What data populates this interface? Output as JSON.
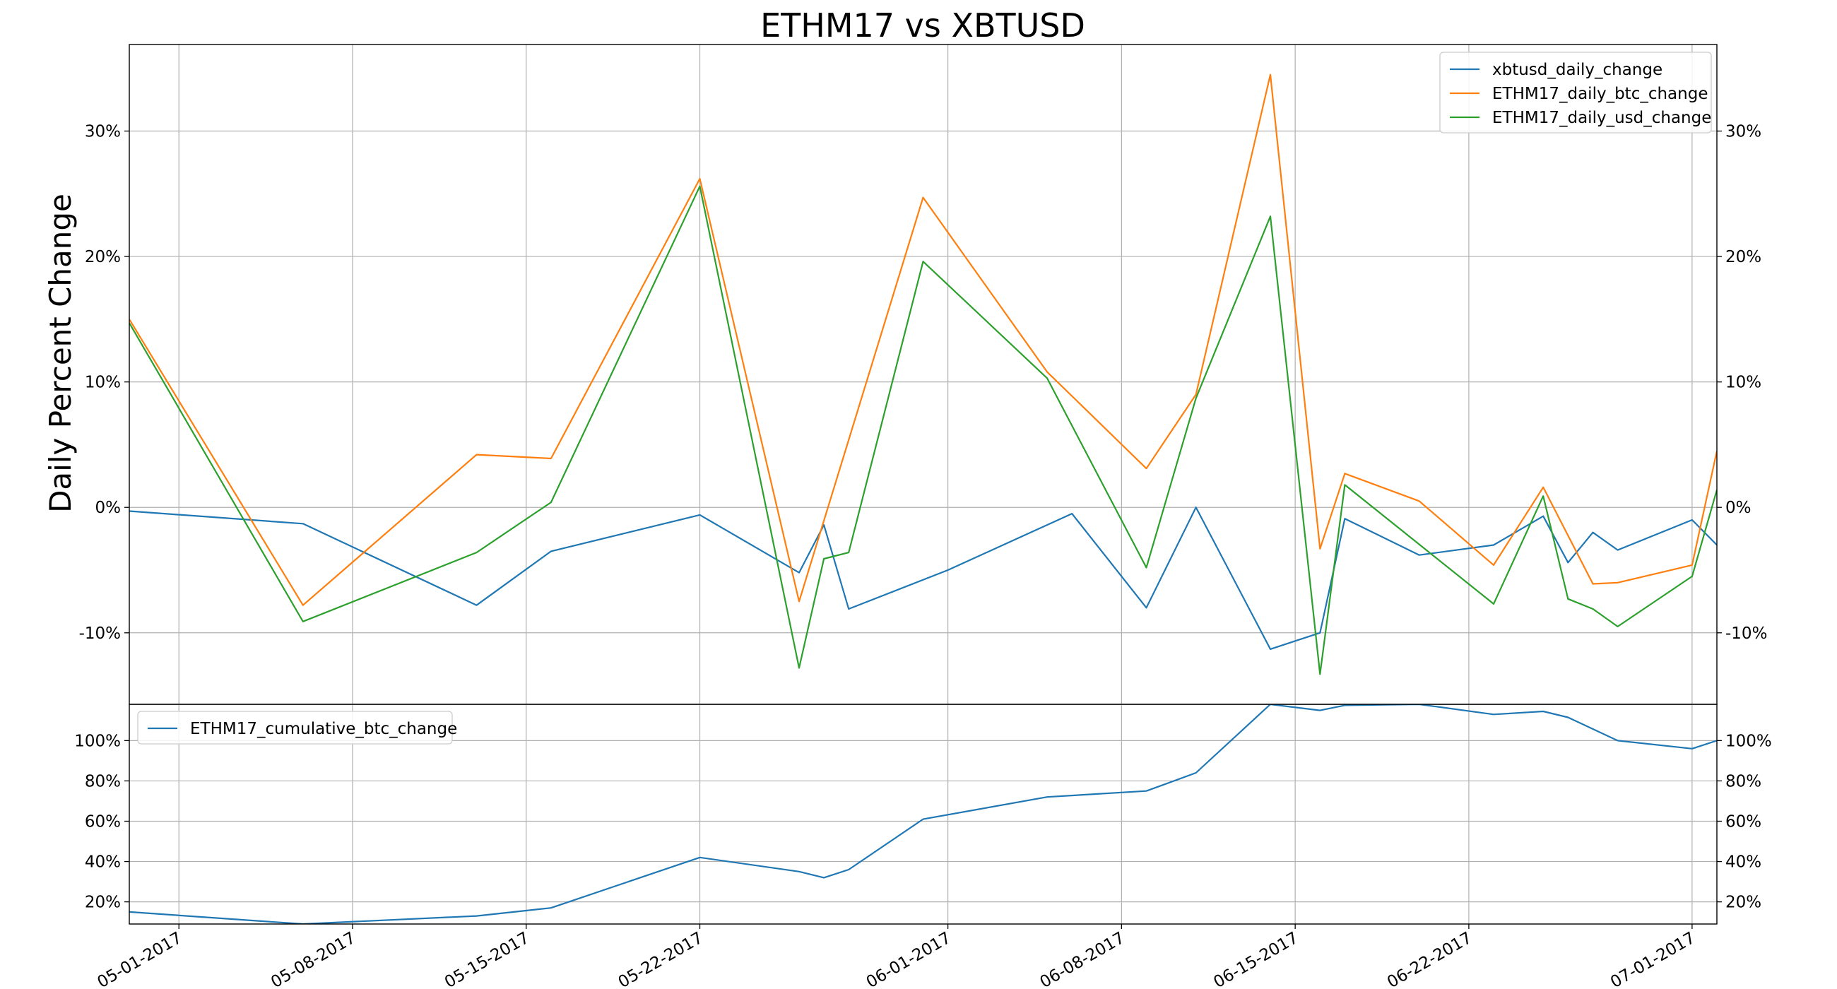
{
  "figure": {
    "title": "ETHM17 vs XBTUSD"
  },
  "chart_data": [
    {
      "type": "line",
      "title": "ETHM17 vs XBTUSD",
      "ylabel": "Daily Percent Change",
      "xlabel": "",
      "x_axis_type": "date",
      "xlim": [
        "2017-04-28",
        "2017-07-01"
      ],
      "ylim": [
        -15.7,
        36.9
      ],
      "y_ticks": [
        -10,
        0,
        10,
        20,
        30
      ],
      "y_tick_labels": [
        "-10%",
        "0%",
        "10%",
        "20%",
        "30%"
      ],
      "y_axis_both_sides": true,
      "grid": true,
      "legend_position": "top-right",
      "series": [
        {
          "name": "xbtusd_daily_change",
          "color": "#1f77b4",
          "points": [
            [
              "2017-04-28",
              -0.3
            ],
            [
              "2017-05-05",
              -1.3
            ],
            [
              "2017-05-12",
              -7.8
            ],
            [
              "2017-05-15",
              -3.5
            ],
            [
              "2017-05-21",
              -0.6
            ],
            [
              "2017-05-25",
              -5.2
            ],
            [
              "2017-05-26",
              -1.4
            ],
            [
              "2017-05-27",
              -8.1
            ],
            [
              "2017-05-31",
              -5.0
            ],
            [
              "2017-06-05",
              -0.5
            ],
            [
              "2017-06-08",
              -8.0
            ],
            [
              "2017-06-10",
              0.0
            ],
            [
              "2017-06-13",
              -11.3
            ],
            [
              "2017-06-15",
              -10.0
            ],
            [
              "2017-06-16",
              -0.9
            ],
            [
              "2017-06-19",
              -3.8
            ],
            [
              "2017-06-22",
              -3.0
            ],
            [
              "2017-06-24",
              -0.7
            ],
            [
              "2017-06-25",
              -4.4
            ],
            [
              "2017-06-26",
              -2.0
            ],
            [
              "2017-06-27",
              -3.4
            ],
            [
              "2017-06-30",
              -1.0
            ],
            [
              "2017-07-01",
              -3.0
            ]
          ]
        },
        {
          "name": "ETHM17_daily_btc_change",
          "color": "#ff7f0e",
          "points": [
            [
              "2017-04-28",
              15.0
            ],
            [
              "2017-05-05",
              -7.8
            ],
            [
              "2017-05-12",
              4.2
            ],
            [
              "2017-05-15",
              3.9
            ],
            [
              "2017-05-21",
              26.2
            ],
            [
              "2017-05-25",
              -7.5
            ],
            [
              "2017-05-30",
              24.7
            ],
            [
              "2017-06-04",
              10.8
            ],
            [
              "2017-06-08",
              3.1
            ],
            [
              "2017-06-10",
              9.0
            ],
            [
              "2017-06-13",
              34.5
            ],
            [
              "2017-06-15",
              -3.3
            ],
            [
              "2017-06-16",
              2.7
            ],
            [
              "2017-06-19",
              0.5
            ],
            [
              "2017-06-22",
              -4.6
            ],
            [
              "2017-06-24",
              1.6
            ],
            [
              "2017-06-26",
              -6.1
            ],
            [
              "2017-06-27",
              -6.0
            ],
            [
              "2017-06-30",
              -4.6
            ],
            [
              "2017-07-01",
              4.5
            ]
          ]
        },
        {
          "name": "ETHM17_daily_usd_change",
          "color": "#2ca02c",
          "points": [
            [
              "2017-04-28",
              14.7
            ],
            [
              "2017-05-05",
              -9.1
            ],
            [
              "2017-05-12",
              -3.6
            ],
            [
              "2017-05-15",
              0.4
            ],
            [
              "2017-05-21",
              25.6
            ],
            [
              "2017-05-25",
              -12.8
            ],
            [
              "2017-05-26",
              -4.1
            ],
            [
              "2017-05-27",
              -3.6
            ],
            [
              "2017-05-30",
              19.6
            ],
            [
              "2017-06-04",
              10.3
            ],
            [
              "2017-06-08",
              -4.8
            ],
            [
              "2017-06-10",
              8.7
            ],
            [
              "2017-06-13",
              23.2
            ],
            [
              "2017-06-15",
              -13.3
            ],
            [
              "2017-06-16",
              1.8
            ],
            [
              "2017-06-22",
              -7.7
            ],
            [
              "2017-06-24",
              0.9
            ],
            [
              "2017-06-25",
              -7.3
            ],
            [
              "2017-06-26",
              -8.1
            ],
            [
              "2017-06-27",
              -9.5
            ],
            [
              "2017-06-30",
              -5.5
            ],
            [
              "2017-07-01",
              1.4
            ]
          ]
        }
      ]
    },
    {
      "type": "line",
      "x_axis_type": "date",
      "xlim": [
        "2017-04-28",
        "2017-07-01"
      ],
      "ylim": [
        9,
        118
      ],
      "y_ticks": [
        20,
        40,
        60,
        80,
        100
      ],
      "y_tick_labels": [
        "20%",
        "40%",
        "60%",
        "80%",
        "100%"
      ],
      "y_axis_both_sides": true,
      "grid": true,
      "legend_position": "top-left",
      "x_ticks": [
        "2017-04-30",
        "2017-05-07",
        "2017-05-14",
        "2017-05-21",
        "2017-05-31",
        "2017-06-07",
        "2017-06-14",
        "2017-06-21",
        "2017-06-30"
      ],
      "x_tick_labels": [
        "05-01-2017",
        "05-08-2017",
        "05-15-2017",
        "05-22-2017",
        "06-01-2017",
        "06-08-2017",
        "06-15-2017",
        "06-22-2017",
        "07-01-2017"
      ],
      "series": [
        {
          "name": "ETHM17_cumulative_btc_change",
          "color": "#1f77b4",
          "points": [
            [
              "2017-04-28",
              15.0
            ],
            [
              "2017-05-05",
              9.0
            ],
            [
              "2017-05-12",
              13.0
            ],
            [
              "2017-05-15",
              17.0
            ],
            [
              "2017-05-21",
              42.0
            ],
            [
              "2017-05-25",
              35.0
            ],
            [
              "2017-05-26",
              32.0
            ],
            [
              "2017-05-27",
              36.0
            ],
            [
              "2017-05-30",
              61.0
            ],
            [
              "2017-06-04",
              72.0
            ],
            [
              "2017-06-08",
              75.0
            ],
            [
              "2017-06-10",
              84.0
            ],
            [
              "2017-06-13",
              118.0
            ],
            [
              "2017-06-15",
              115.0
            ],
            [
              "2017-06-16",
              117.5
            ],
            [
              "2017-06-19",
              118.0
            ],
            [
              "2017-06-22",
              113.0
            ],
            [
              "2017-06-24",
              114.5
            ],
            [
              "2017-06-25",
              111.5
            ],
            [
              "2017-06-27",
              100.0
            ],
            [
              "2017-06-30",
              96.0
            ],
            [
              "2017-07-01",
              100.0
            ]
          ]
        }
      ]
    }
  ]
}
